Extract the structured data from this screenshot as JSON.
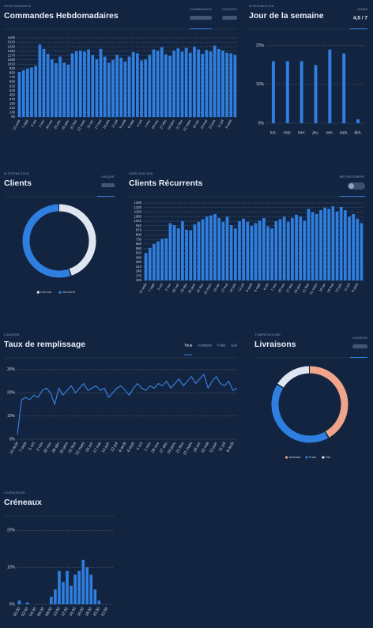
{
  "chart_data": [
    {
      "type": "bar",
      "label": "PERFORMANCE",
      "title": "Commandes Hebdomadaires",
      "toggles": [
        "COMMANDES",
        "CASIERS"
      ],
      "color": "#2f7fe0",
      "categories": [
        "10 août",
        null,
        "7 sept",
        null,
        "5 oct",
        null,
        "2 nov",
        null,
        "30 nov",
        null,
        "28 déc",
        null,
        "25 janv",
        null,
        "22 févr",
        null,
        "22 mars",
        null,
        "19 avr",
        null,
        "17 mai",
        null,
        "14 juin",
        null,
        "12 juil",
        null,
        "9 août",
        null,
        "6 sept",
        null,
        "4 oct",
        null,
        "1 nov",
        null,
        "29 nov",
        null,
        "27 déc",
        null,
        "24 janv",
        null,
        "21 févr",
        null,
        "21 mars",
        null,
        "18 avr",
        null,
        "16 mai",
        null,
        "13 juin",
        null,
        "11 juil",
        null,
        "8 août",
        null
      ],
      "values": [
        870,
        900,
        930,
        950,
        980,
        1370,
        1290,
        1200,
        1100,
        1030,
        1150,
        1040,
        1000,
        1210,
        1250,
        1260,
        1240,
        1280,
        1180,
        1100,
        1290,
        1150,
        1040,
        1090,
        1180,
        1130,
        1060,
        1150,
        1230,
        1210,
        1080,
        1100,
        1180,
        1280,
        1260,
        1320,
        1190,
        1160,
        1260,
        1300,
        1240,
        1310,
        1220,
        1330,
        1280,
        1200,
        1270,
        1240,
        1350,
        1290,
        1260,
        1220,
        1210,
        1180
      ],
      "ylim": [
        50,
        1490
      ],
      "yticks": [
        50,
        130,
        210,
        290,
        370,
        450,
        530,
        610,
        690,
        770,
        850,
        930,
        1010,
        1090,
        1170,
        1250,
        1330,
        1410,
        1490
      ],
      "grid": true
    },
    {
      "type": "bar",
      "label": "DISTRIBUTION",
      "title": "Jour de la semaine",
      "badge": {
        "label": "JOURS",
        "value": "4,5 / 7"
      },
      "color": "#2f7fe0",
      "categories": [
        "lun.",
        "mar.",
        "mer.",
        "jeu.",
        "ven.",
        "sam.",
        "dim."
      ],
      "values": [
        16,
        16,
        16,
        15,
        19,
        18,
        1
      ],
      "ylim": [
        0,
        22
      ],
      "yticks": [
        {
          "value": 0,
          "label": "0%"
        },
        {
          "value": 10,
          "label": "10%"
        },
        {
          "value": 20,
          "label": "20%"
        }
      ],
      "grid": true
    },
    {
      "type": "pie",
      "label": "DISTRIBUTION",
      "title": "Clients",
      "toggles": [
        "UNIQUE"
      ],
      "categories": [
        "une fois",
        "récurrent"
      ],
      "values": [
        45,
        55
      ],
      "colors": [
        "#dfe6f2",
        "#2f7fe0"
      ]
    },
    {
      "type": "bar",
      "label": "FIDÉLISATION",
      "title": "Clients Récurrents",
      "toggles": [
        "RECRUTEMENT"
      ],
      "color": "#2f7fe0",
      "categories": [
        "10 août",
        null,
        "7 sept",
        null,
        "5 oct",
        null,
        "2 nov",
        null,
        "30 nov",
        null,
        "28 déc",
        null,
        "25 janv",
        null,
        "22 févr",
        null,
        "22 mars",
        null,
        "19 avr",
        null,
        "17 mai",
        null,
        "14 juin",
        null,
        "12 juil",
        null,
        "9 août",
        null,
        "6 sept",
        null,
        "4 oct",
        null,
        "1 nov",
        null,
        "29 nov",
        null,
        "27 déc",
        null,
        "24 janv",
        null,
        "21 févr",
        null,
        "21 mars",
        null,
        "18 avr",
        null,
        "16 mai",
        null,
        "13 juin",
        null,
        "11 juil",
        null,
        "8 août",
        null
      ],
      "values": [
        520,
        600,
        660,
        700,
        740,
        750,
        980,
        950,
        900,
        1010,
        880,
        870,
        960,
        1000,
        1040,
        1080,
        1100,
        1120,
        1060,
        1000,
        1080,
        950,
        900,
        1010,
        1050,
        1000,
        940,
        980,
        1020,
        1060,
        930,
        900,
        1010,
        1040,
        1080,
        1000,
        1060,
        1110,
        1080,
        1020,
        1200,
        1150,
        1120,
        1180,
        1220,
        1200,
        1240,
        1160,
        1230,
        1180,
        1080,
        1120,
        1050,
        980
      ],
      "ylim": [
        100,
        1290
      ],
      "yticks": [
        100,
        170,
        240,
        310,
        380,
        450,
        520,
        590,
        660,
        730,
        800,
        870,
        940,
        1010,
        1080,
        1150,
        1220,
        1290
      ],
      "grid": true
    },
    {
      "type": "line",
      "label": "CASIERS",
      "title": "Taux de remplissage",
      "tabs": [
        "Tous",
        "Ambiant",
        "Frais",
        "Gel"
      ],
      "color": "#3a86e8",
      "categories": [
        "10 août",
        null,
        "7 sept",
        null,
        "5 oct",
        null,
        "2 nov",
        null,
        "30 nov",
        null,
        "28 déc",
        null,
        "25 janv",
        null,
        "22 févr",
        null,
        "22 mars",
        null,
        "19 avr",
        null,
        "17 mai",
        null,
        "14 juin",
        null,
        "12 juil",
        null,
        "9 août",
        null,
        "6 sept",
        null,
        "4 oct",
        null,
        "1 nov",
        null,
        "29 nov",
        null,
        "27 déc",
        null,
        "24 janv",
        null,
        "21 févr",
        null,
        "21 mars",
        null,
        "18 avr",
        null,
        "16 mai",
        null,
        "13 juin",
        null,
        "11 juil",
        null,
        "8 août",
        null
      ],
      "values": [
        2,
        17,
        18,
        17,
        19,
        18,
        21,
        22,
        20,
        15,
        22,
        19,
        21,
        23,
        20,
        22,
        24,
        21,
        22,
        23,
        21,
        22,
        18,
        20,
        22,
        23,
        21,
        19,
        22,
        24,
        22,
        21,
        23,
        22,
        24,
        23,
        25,
        22,
        24,
        26,
        23,
        25,
        27,
        24,
        26,
        28,
        22,
        25,
        27,
        24,
        23,
        25,
        21,
        22
      ],
      "ylim": [
        0,
        32
      ],
      "yticks": [
        {
          "value": 0,
          "label": "0%"
        },
        {
          "value": 10,
          "label": "10%"
        },
        {
          "value": 20,
          "label": "20%"
        },
        {
          "value": 30,
          "label": "30%"
        }
      ],
      "grid": true
    },
    {
      "type": "pie",
      "label": "TEMPÉRATURE",
      "title": "Livraisons",
      "toggles": [
        "CASIERS"
      ],
      "categories": [
        "Ambiant",
        "Frais",
        "Gel"
      ],
      "values": [
        42,
        42,
        16
      ],
      "colors": [
        "#f0a58a",
        "#2f7fe0",
        "#dfe6f2"
      ]
    },
    {
      "type": "bar",
      "label": "LIVRAISONS",
      "title": "Créneaux",
      "color": "#2f7fe0",
      "categories": [
        "00:00",
        null,
        "02:00",
        null,
        "04:00",
        null,
        "06:00",
        null,
        "08:00",
        null,
        "10:00",
        null,
        "12:00",
        null,
        "14:00",
        null,
        "16:00",
        null,
        "18:00",
        null,
        "20:00",
        null,
        "22:00",
        null
      ],
      "values": [
        1,
        0,
        0.5,
        0,
        0,
        0,
        0,
        0,
        2,
        4,
        9,
        6,
        9,
        5,
        8,
        9,
        12,
        10,
        8,
        4,
        1,
        0,
        0,
        0
      ],
      "ylim": [
        0,
        22
      ],
      "yticks": [
        {
          "value": 0,
          "label": "0%"
        },
        {
          "value": 10,
          "label": "10%"
        },
        {
          "value": 20,
          "label": "20%"
        }
      ],
      "grid": true
    }
  ]
}
